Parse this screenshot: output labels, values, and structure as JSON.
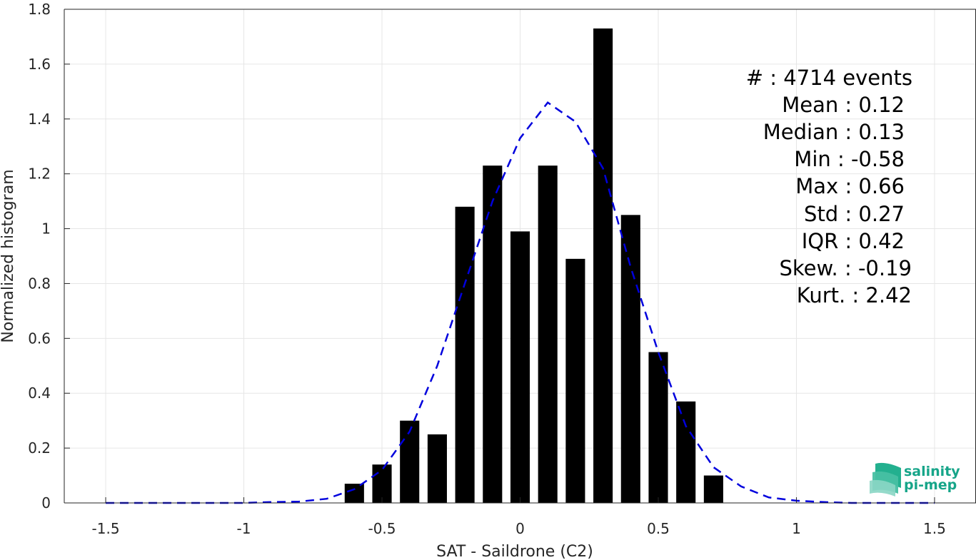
{
  "chart_data": {
    "type": "bar",
    "xlabel": "SAT - Saildrone (C2)",
    "ylabel": "Normalized histogram",
    "xlim": [
      -1.65,
      1.65
    ],
    "ylim": [
      0,
      1.8
    ],
    "xticks": [
      -1.5,
      -1,
      -0.5,
      0,
      0.5,
      1,
      1.5
    ],
    "xtick_labels": [
      "-1.5",
      "-1",
      "-0.5",
      "0",
      "0.5",
      "1",
      "1.5"
    ],
    "yticks": [
      0,
      0.2,
      0.4,
      0.6,
      0.8,
      1,
      1.2,
      1.4,
      1.6,
      1.8
    ],
    "ytick_labels": [
      "0",
      "0.2",
      "0.4",
      "0.6",
      "0.8",
      "1",
      "1.2",
      "1.4",
      "1.6",
      "1.8"
    ],
    "grid": true,
    "bar_width": 0.07,
    "bar_color": "#000000",
    "bars": {
      "x": [
        -0.6,
        -0.5,
        -0.4,
        -0.3,
        -0.2,
        -0.1,
        0.0,
        0.1,
        0.2,
        0.3,
        0.4,
        0.5,
        0.6,
        0.7
      ],
      "values": [
        0.07,
        0.14,
        0.3,
        0.25,
        1.08,
        1.23,
        0.99,
        1.23,
        0.89,
        1.73,
        1.05,
        0.55,
        0.37,
        0.1
      ]
    },
    "fit_curve": {
      "style": "dashed",
      "color": "#0000dd",
      "x": [
        -1.5,
        -1.4,
        -1.3,
        -1.2,
        -1.1,
        -1.0,
        -0.9,
        -0.8,
        -0.7,
        -0.6,
        -0.5,
        -0.4,
        -0.3,
        -0.2,
        -0.1,
        0.0,
        0.1,
        0.2,
        0.3,
        0.4,
        0.5,
        0.6,
        0.7,
        0.8,
        0.9,
        1.0,
        1.1,
        1.2,
        1.3,
        1.4,
        1.5
      ],
      "y": [
        0.0,
        0.0,
        0.0,
        0.0,
        0.0,
        0.0,
        0.003,
        0.005,
        0.015,
        0.05,
        0.12,
        0.26,
        0.5,
        0.8,
        1.1,
        1.33,
        1.46,
        1.39,
        1.22,
        0.86,
        0.55,
        0.28,
        0.13,
        0.06,
        0.02,
        0.008,
        0.003,
        0.0,
        0.0,
        0.0,
        0.0
      ]
    },
    "stats": [
      "#  : 4714 events",
      "Mean : 0.12",
      "Median : 0.13",
      "Min : -0.58",
      "Max : 0.66",
      "Std : 0.27",
      "IQR : 0.42",
      "Skew. : -0.19",
      "Kurt. : 2.42"
    ]
  },
  "logo": {
    "line1": "salinity",
    "line2": "pi-mep",
    "color": "#16a589"
  }
}
